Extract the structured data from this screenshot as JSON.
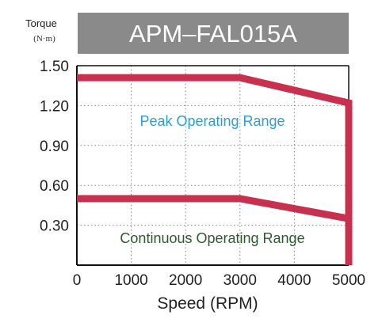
{
  "chart_data": {
    "type": "line",
    "title": "APM–FAL015A",
    "ylabel": "Torque",
    "yunit": "(N·m)",
    "xlabel": "Speed (RPM)",
    "xlim": [
      0,
      5000
    ],
    "ylim": [
      0,
      1.5
    ],
    "x_ticks": [
      "0",
      "1000",
      "2000",
      "3000",
      "4000",
      "5000"
    ],
    "y_ticks": [
      "0.30",
      "0.60",
      "0.90",
      "1.20",
      "1.50"
    ],
    "grid": true,
    "series": [
      {
        "x": [
          0,
          3000,
          5000,
          5000
        ],
        "y": [
          1.41,
          1.41,
          1.22,
          0
        ]
      },
      {
        "x": [
          0,
          3000,
          5000
        ],
        "y": [
          0.5,
          0.5,
          0.35
        ]
      }
    ],
    "annotations": [
      "Peak Operating Range",
      "Continuous Operating Range"
    ],
    "colors": {
      "curve": "#c8304f",
      "title_bg": "#8a8a8a",
      "peak_text": "#2a9fd0",
      "cont_text": "#2e5a2e"
    }
  }
}
